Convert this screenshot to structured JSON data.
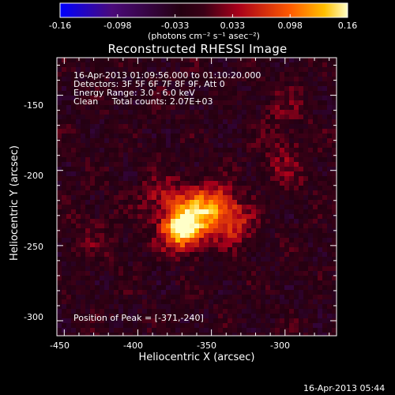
{
  "colorbar": {
    "ticks": [
      "-0.16",
      "-0.098",
      "-0.033",
      "0.033",
      "0.098",
      "0.16"
    ],
    "units": "(photons cm⁻² s⁻¹ asec⁻²)",
    "min": -0.16,
    "max": 0.16
  },
  "chart_data": {
    "type": "heatmap",
    "title": "Reconstructed RHESSI Image",
    "xlabel": "Heliocentric X (arcsec)",
    "ylabel": "Heliocentric Y (arcsec)",
    "xlim": [
      -455,
      -265
    ],
    "ylim": [
      -310,
      -125
    ],
    "xticks": [
      -450,
      -400,
      -350,
      -300
    ],
    "yticks": [
      -150,
      -200,
      -250,
      -300
    ],
    "annotations": [
      "16-Apr-2013 01:09:56.000 to 01:10:20.000",
      "Detectors: 3F 5F 6F 7F 8F 9F, Att 0",
      "Energy Range: 3.0 - 6.0 keV",
      "Clean     Total counts: 2.07E+03"
    ],
    "peak_label": "Position of Peak = [-371,-240]",
    "peak": {
      "x": -371,
      "y": -240
    },
    "sources": [
      {
        "x": -371,
        "y": -240,
        "amp": 0.16,
        "sigma": 9
      },
      {
        "x": -360,
        "y": -228,
        "amp": 0.11,
        "sigma": 12
      },
      {
        "x": -345,
        "y": -225,
        "amp": 0.08,
        "sigma": 10
      },
      {
        "x": -332,
        "y": -237,
        "amp": 0.06,
        "sigma": 9
      },
      {
        "x": -385,
        "y": -218,
        "amp": 0.05,
        "sigma": 10
      },
      {
        "x": -300,
        "y": -195,
        "amp": 0.04,
        "sigma": 12
      },
      {
        "x": -300,
        "y": -160,
        "amp": 0.03,
        "sigma": 10
      },
      {
        "x": -430,
        "y": -245,
        "amp": 0.025,
        "sigma": 12
      }
    ],
    "footer_timestamp": "16-Apr-2013 05:44"
  }
}
